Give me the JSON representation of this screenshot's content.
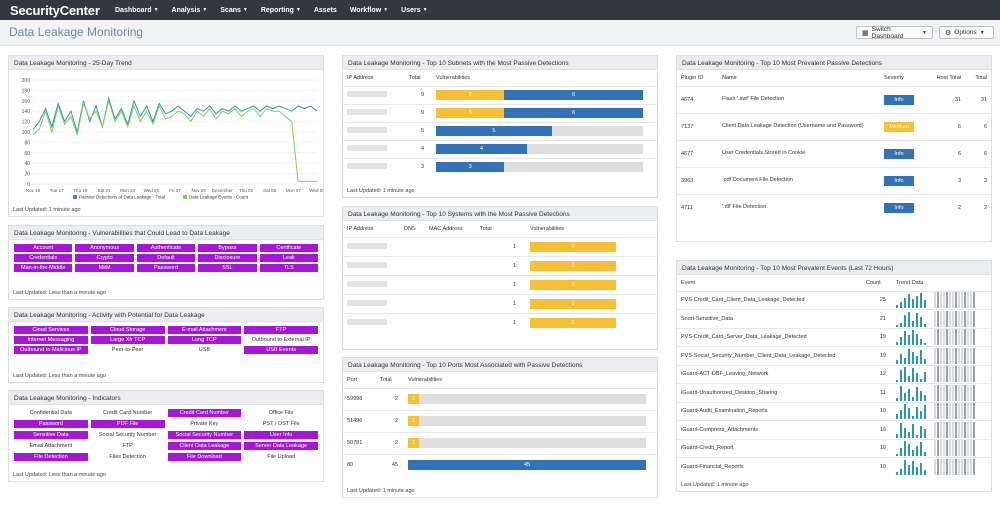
{
  "brand": "SecurityCenter",
  "nav": [
    "Dashboard",
    "Analysis",
    "Scans",
    "Reporting",
    "Assets",
    "Workflow",
    "Users"
  ],
  "page_title": "Data Leakage Monitoring",
  "switch_dashboard": "Switch Dashboard",
  "options": "Options",
  "colors": {
    "topbar": "#33373f",
    "purple": "#a616d6",
    "yellow": "#f6c034",
    "blue": "#3373b5",
    "info": "#3373b5",
    "medium": "#f6c034",
    "teal": "#2a9aa3",
    "green": "#80d060"
  },
  "trend": {
    "title": "Data Leakage Monitoring - 25-Day Trend",
    "yticks": [
      "200",
      "180",
      "160",
      "140",
      "120",
      "100",
      "80",
      "60",
      "40",
      "20",
      "0"
    ],
    "xticks": [
      "Nov 15",
      "Tue 17",
      "Thu 19",
      "Sat 21",
      "Mon 23",
      "Wed 25",
      "Fri 27",
      "Nov 29",
      "December",
      "Thu 03",
      "Sat 05",
      "Mon 07",
      "Wed 09"
    ],
    "legend": [
      "Passive Detections of Data Leakage - Total",
      "Data Leakage Events - Count"
    ],
    "updated": "Last Updated: 1 minute ago"
  },
  "chart_data": {
    "type": "line",
    "title": "Data Leakage Monitoring - 25-Day Trend",
    "ylim": [
      0,
      200
    ],
    "series": [
      {
        "name": "Passive Detections of Data Leakage - Total",
        "values": [
          105,
          120,
          145,
          110,
          155,
          120,
          140,
          100,
          160,
          120,
          150,
          110,
          165,
          125,
          145,
          115,
          160,
          130,
          150,
          120,
          155,
          135,
          140,
          150,
          140,
          130,
          145,
          140,
          150,
          135,
          145,
          140,
          150,
          140,
          145,
          150,
          140,
          150,
          145,
          150,
          145,
          140,
          150,
          145,
          150,
          140
        ]
      },
      {
        "name": "Data Leakage Events - Count",
        "values": [
          95,
          105,
          140,
          100,
          150,
          115,
          130,
          95,
          155,
          125,
          140,
          110,
          160,
          120,
          140,
          110,
          150,
          120,
          140,
          115,
          150,
          125,
          130,
          140,
          135,
          120,
          140,
          130,
          145,
          125,
          140,
          135,
          145,
          130,
          140,
          145,
          130,
          145,
          140,
          140,
          130,
          120,
          5,
          5,
          5,
          5
        ]
      }
    ]
  },
  "vuln": {
    "title": "Data Leakage Monitoring - Vulnerabilities that Could Lead to Data Leakage",
    "tags": [
      "Account",
      "Anonymous",
      "Authenticate",
      "Bypass",
      "Certificate",
      "Credentials",
      "Crypto",
      "Default",
      "Disclosure",
      "Leak",
      "Man-in-the-Middle",
      "MitM",
      "Password",
      "SSL",
      "TLS"
    ],
    "updated": "Last Updated: Less than a minute ago"
  },
  "activity": {
    "title": "Data Leakage Monitoring - Activity with Potential for Data Leakage",
    "tags": [
      {
        "t": "Cloud Services",
        "on": true
      },
      {
        "t": "Cloud Storage",
        "on": true
      },
      {
        "t": "E-mail Attachment",
        "on": true
      },
      {
        "t": "FTP",
        "on": true
      },
      {
        "t": "Internet Messaging",
        "on": true
      },
      {
        "t": "Large Xfr TCP",
        "on": true
      },
      {
        "t": "Long TCP",
        "on": true
      },
      {
        "t": "Outbound to External IP",
        "on": false
      },
      {
        "t": "Outbound to Malicious IP",
        "on": true
      },
      {
        "t": "Peer-to-Peer",
        "on": false
      },
      {
        "t": "USB",
        "on": false
      },
      {
        "t": "USB Events",
        "on": true
      }
    ],
    "updated": "Last Updated: Less than a minute ago"
  },
  "indicators": {
    "title": "Data Leakage Monitoring - Indicators",
    "tags": [
      {
        "t": "Confidential Data",
        "on": false
      },
      {
        "t": "Credit Card Number",
        "on": false
      },
      {
        "t": "Credit Card Number",
        "on": true
      },
      {
        "t": "Office File",
        "on": false
      },
      {
        "t": "Password",
        "on": true
      },
      {
        "t": "PDF File",
        "on": true
      },
      {
        "t": "Private Key",
        "on": false
      },
      {
        "t": "PST / OST File",
        "on": false
      },
      {
        "t": "Sensitive Data",
        "on": true
      },
      {
        "t": "Social Security Number",
        "on": false
      },
      {
        "t": "Social Security Number",
        "on": true
      },
      {
        "t": "User Info",
        "on": true
      },
      {
        "t": "Email Attachment",
        "on": false
      },
      {
        "t": "FTP",
        "on": false
      },
      {
        "t": "Client Data Leakage",
        "on": true
      },
      {
        "t": "Server Data Leakage",
        "on": true
      },
      {
        "t": "File Detection",
        "on": true
      },
      {
        "t": "Files Detection",
        "on": false
      },
      {
        "t": "File Download",
        "on": true
      },
      {
        "t": "File Upload",
        "on": false
      }
    ],
    "updated": "Last Updated: Less than a minute ago"
  },
  "subnets": {
    "title": "Data Leakage Monitoring - Top 10 Subnets with the Most Passive Detections",
    "headers": [
      "IP Address",
      "Total",
      "Vulnerabilities"
    ],
    "rows": [
      {
        "total": "9",
        "y": "3",
        "b": "6",
        "yf": 0.33,
        "bf": 0.67
      },
      {
        "total": "9",
        "y": "3",
        "b": "6",
        "yf": 0.33,
        "bf": 0.67
      },
      {
        "total": "5",
        "y": "",
        "b": "5",
        "yf": 0,
        "bf": 0.56
      },
      {
        "total": "4",
        "y": "",
        "b": "4",
        "yf": 0,
        "bf": 0.44
      },
      {
        "total": "3",
        "y": "",
        "b": "3",
        "yf": 0,
        "bf": 0.33
      }
    ],
    "updated": "Last Updated: 1 minute ago"
  },
  "systems": {
    "title": "Data Leakage Monitoring - Top 10 Systems with the Most Passive Detections",
    "headers": [
      "IP Address",
      "DNS",
      "MAC Address",
      "Total",
      "Vulnerabilities"
    ],
    "rows": [
      {
        "total": "1",
        "v": "1"
      },
      {
        "total": "1",
        "v": "1"
      },
      {
        "total": "1",
        "v": "1"
      },
      {
        "total": "1",
        "v": "1"
      },
      {
        "total": "1",
        "v": "1"
      }
    ]
  },
  "ports": {
    "title": "Data Leakage Monitoring - Top 10 Ports Most Associated with Passive Detections",
    "headers": [
      "Port",
      "Total",
      "Vulnerabilities"
    ],
    "rows": [
      {
        "port": "59998",
        "total": "2",
        "v": "2",
        "color": "y",
        "f": 0.045
      },
      {
        "port": "51496",
        "total": "2",
        "v": "2",
        "color": "y",
        "f": 0.045
      },
      {
        "port": "50781",
        "total": "2",
        "v": "2",
        "color": "y",
        "f": 0.045
      },
      {
        "port": "80",
        "total": "45",
        "v": "45",
        "color": "b",
        "f": 1
      }
    ],
    "updated": "Last Updated: 1 minute ago"
  },
  "plugins": {
    "title": "Data Leakage Monitoring - Top 10 Most Prevalent Passive Detections",
    "headers": [
      "Plugin ID",
      "Name",
      "Severity",
      "Host Total",
      "Total"
    ],
    "rows": [
      {
        "id": "4674",
        "name": "Flash '.swf' File Detection",
        "sev": "Info",
        "host": "31",
        "total": "31"
      },
      {
        "id": "7137",
        "name": "Client Data Leakage Detection (Username and Password)",
        "sev": "Medium",
        "host": "6",
        "total": "6"
      },
      {
        "id": "4677",
        "name": "User Credentials Stored in Cookie",
        "sev": "Info",
        "host": "6",
        "total": "6"
      },
      {
        "id": "3963",
        "name": ".pdf Document File Detection",
        "sev": "Info",
        "host": "3",
        "total": "3"
      },
      {
        "id": "4711",
        "name": "'.dll' File Detection",
        "sev": "Info",
        "host": "2",
        "total": "2"
      }
    ]
  },
  "events": {
    "title": "Data Leakage Monitoring - Top 10 Most Prevalent Events (Last 72 Hours)",
    "headers": [
      "Event",
      "Count",
      "Trend Data"
    ],
    "rows": [
      {
        "name": "PVS-Credit_Card_Client_Data_Leakage_Detected",
        "count": "25"
      },
      {
        "name": "Snort-Sensitive_Data",
        "count": "21"
      },
      {
        "name": "PVS-Credit_Card_Server_Data_Leakage_Detected",
        "count": "19"
      },
      {
        "name": "PVS-Social_Security_Number_Client_Data_Leakage_Detected",
        "count": "19"
      },
      {
        "name": "iGuard-ACT-DBF_Leaving_Network",
        "count": "12"
      },
      {
        "name": "iGuard-Unauthorized_Desktop_Sharing",
        "count": "11"
      },
      {
        "name": "iGuard-Audit_Examination_Reports",
        "count": "10"
      },
      {
        "name": "iGuard-Compress_Attachments",
        "count": "10"
      },
      {
        "name": "iGuard-Credit_Report",
        "count": "10"
      },
      {
        "name": "iGuard-Financial_Reports",
        "count": "10"
      }
    ],
    "updated": "Last Updated: 1 minute ago"
  }
}
